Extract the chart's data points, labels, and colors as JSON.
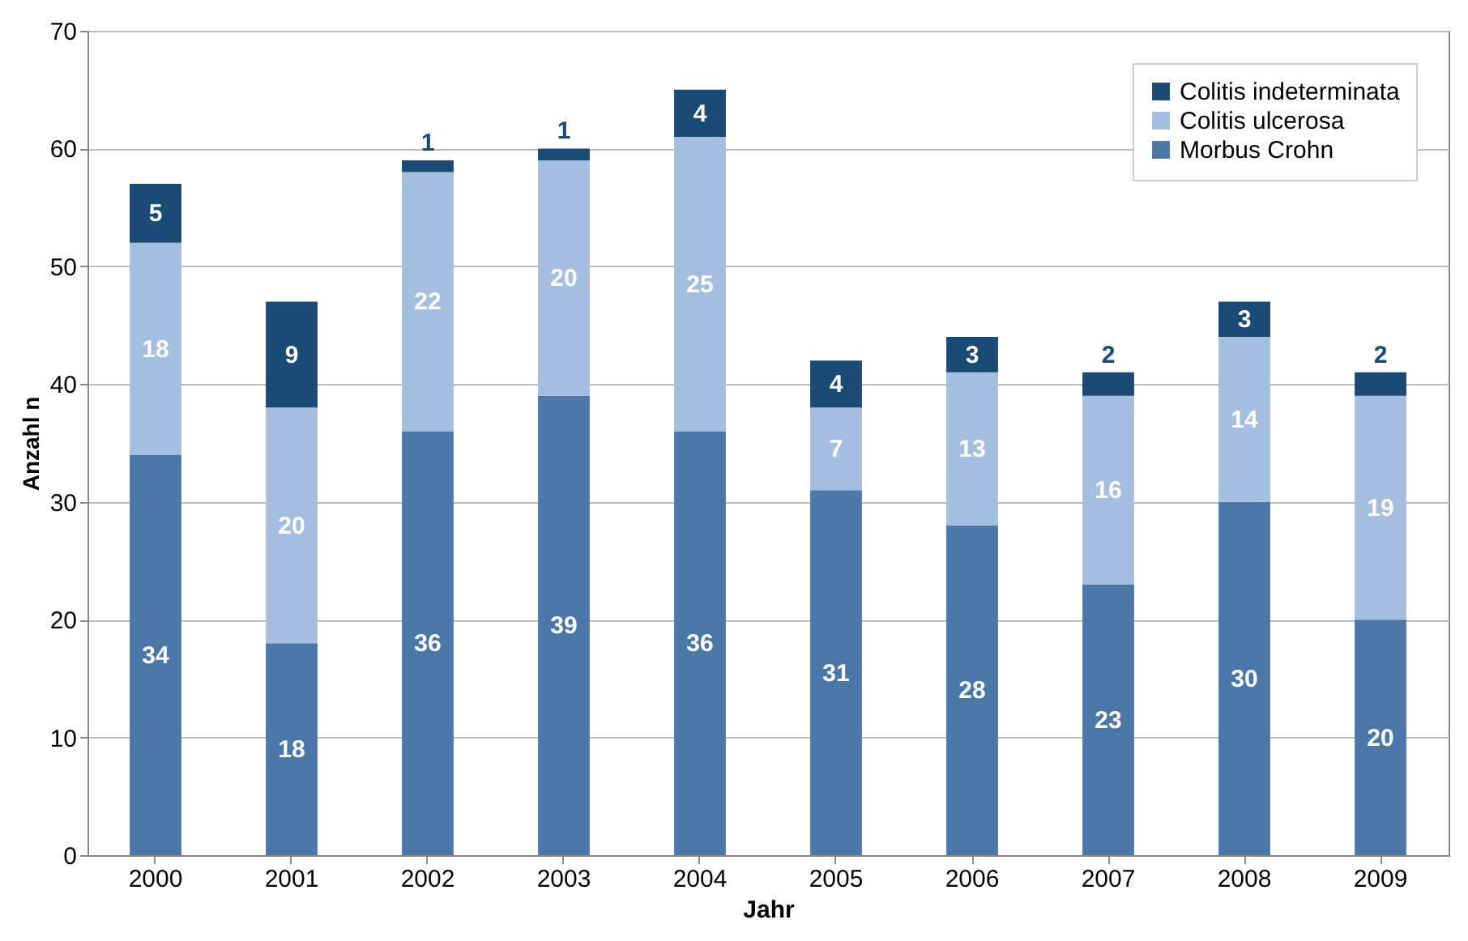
{
  "chart_data": {
    "type": "bar",
    "stacked": true,
    "xlabel": "Jahr",
    "ylabel": "Anzahl n",
    "categories": [
      "2000",
      "2001",
      "2002",
      "2003",
      "2004",
      "2005",
      "2006",
      "2007",
      "2008",
      "2009"
    ],
    "series": [
      {
        "name": "Morbus Crohn",
        "color": "#4a77a8",
        "values": [
          34,
          18,
          36,
          39,
          36,
          31,
          28,
          23,
          30,
          20
        ]
      },
      {
        "name": "Colitis ulcerosa",
        "color": "#a5bedf",
        "values": [
          18,
          20,
          22,
          20,
          25,
          7,
          13,
          16,
          14,
          19
        ]
      },
      {
        "name": "Colitis indeterminata",
        "color": "#1b4a75",
        "values": [
          5,
          9,
          1,
          1,
          4,
          4,
          3,
          2,
          3,
          2
        ]
      }
    ],
    "ylim": [
      0,
      70
    ],
    "yticks": [
      0,
      10,
      20,
      30,
      40,
      50,
      60,
      70
    ],
    "grid": "y",
    "legend": "top right",
    "data_labels": true
  }
}
